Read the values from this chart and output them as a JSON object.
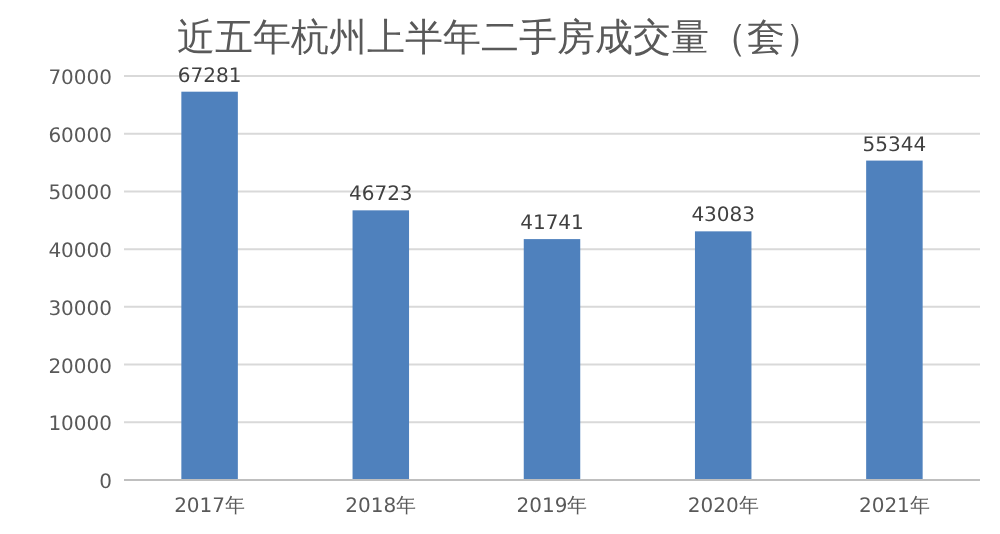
{
  "chart_data": {
    "type": "bar",
    "title": "近五年杭州上半年二手房成交量（套）",
    "categories": [
      "2017年",
      "2018年",
      "2019年",
      "2020年",
      "2021年"
    ],
    "values": [
      67281,
      46723,
      41741,
      43083,
      55344
    ],
    "color": "#4f81bd",
    "ylim": [
      0,
      70000
    ],
    "yticks": [
      0,
      10000,
      20000,
      30000,
      40000,
      50000,
      60000,
      70000
    ],
    "grid": "y",
    "data_labels": true
  }
}
